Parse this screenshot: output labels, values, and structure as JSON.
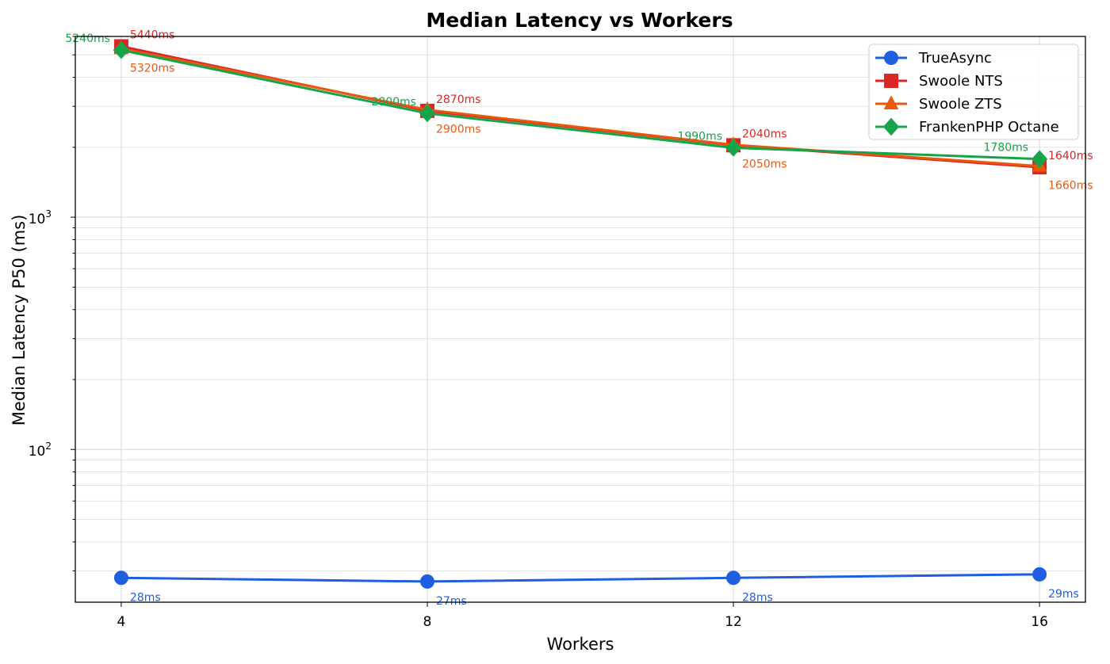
{
  "chart_data": {
    "type": "line",
    "title": "Median Latency vs Workers",
    "xlabel": "Workers",
    "ylabel": "Median Latency P50 (ms)",
    "yscale": "log",
    "ylim": [
      22,
      6000
    ],
    "xlim": [
      3.4,
      16.6
    ],
    "x": [
      4,
      8,
      12,
      16
    ],
    "x_ticks": [
      "4",
      "8",
      "12",
      "16"
    ],
    "y_ticks": [
      {
        "value": 100,
        "base": "10",
        "exp": "2"
      },
      {
        "value": 1000,
        "base": "10",
        "exp": "3"
      }
    ],
    "grid": true,
    "legend_position": "top-right",
    "series": [
      {
        "name": "TrueAsync",
        "color": "#1f5ee0",
        "marker": "circle",
        "values": [
          28,
          27,
          28,
          29
        ],
        "labels": [
          "28ms",
          "27ms",
          "28ms",
          "29ms"
        ],
        "label_pos": "below-right"
      },
      {
        "name": "Swoole NTS",
        "color": "#dc2626",
        "marker": "square",
        "values": [
          5440,
          2870,
          2040,
          1640
        ],
        "labels": [
          "5440ms",
          "2870ms",
          "2040ms",
          "1640ms"
        ],
        "label_pos": "above-right"
      },
      {
        "name": "Swoole ZTS",
        "color": "#ea580c",
        "marker": "triangle",
        "values": [
          5320,
          2900,
          2050,
          1660
        ],
        "labels": [
          "5320ms",
          "2900ms",
          "2050ms",
          "1660ms"
        ],
        "label_pos": "below-right"
      },
      {
        "name": "FrankenPHP Octane",
        "color": "#16a34a",
        "marker": "diamond",
        "values": [
          5240,
          2800,
          1990,
          1780
        ],
        "labels": [
          "5240ms",
          "2800ms",
          "1990ms",
          "1780ms"
        ],
        "label_pos": "above-left"
      }
    ]
  }
}
